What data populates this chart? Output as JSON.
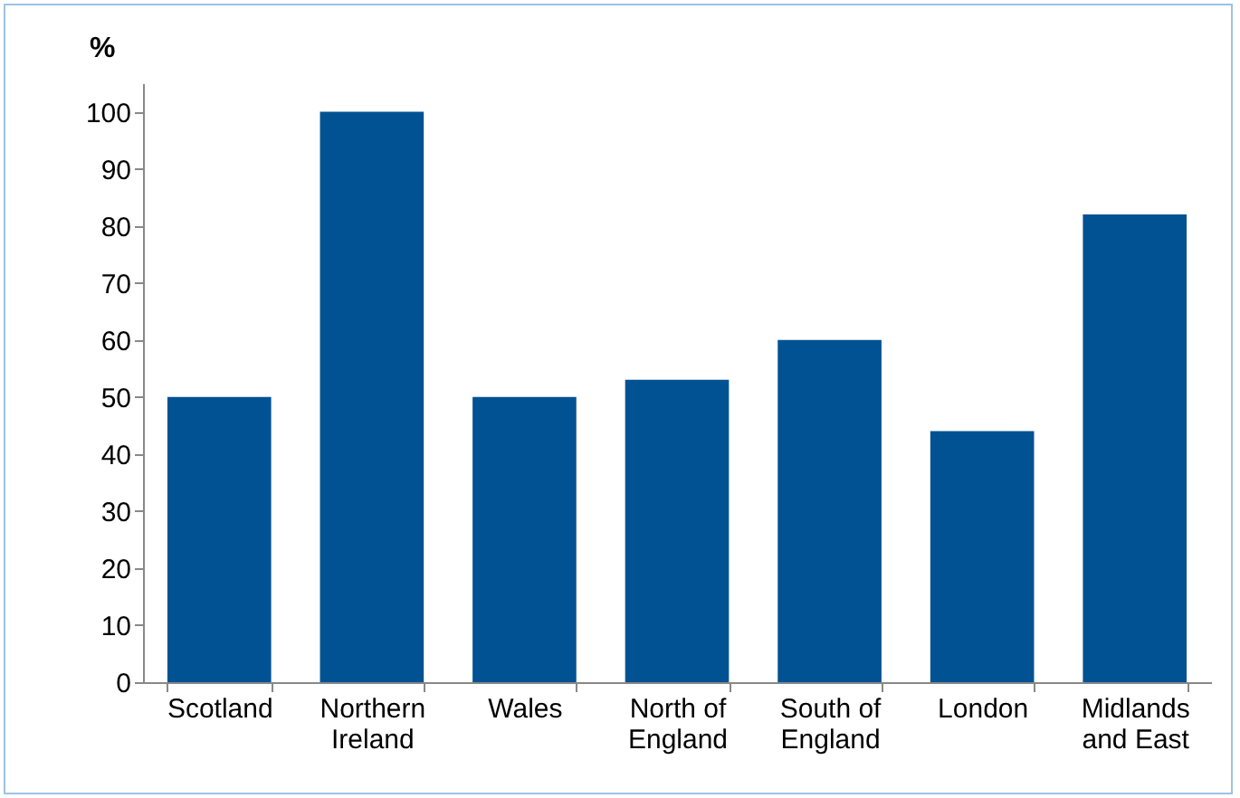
{
  "chart_data": {
    "type": "bar",
    "ylabel": "%",
    "categories": [
      "Scotland",
      "Northern Ireland",
      "Wales",
      "North of England",
      "South of England",
      "London",
      "Midlands and East"
    ],
    "values": [
      50,
      100,
      50,
      53,
      60,
      44,
      82
    ],
    "color": "#005293",
    "ylim": [
      0,
      105
    ],
    "yticks": [
      0,
      10,
      20,
      30,
      40,
      50,
      60,
      70,
      80,
      90,
      100
    ],
    "grid": false
  }
}
